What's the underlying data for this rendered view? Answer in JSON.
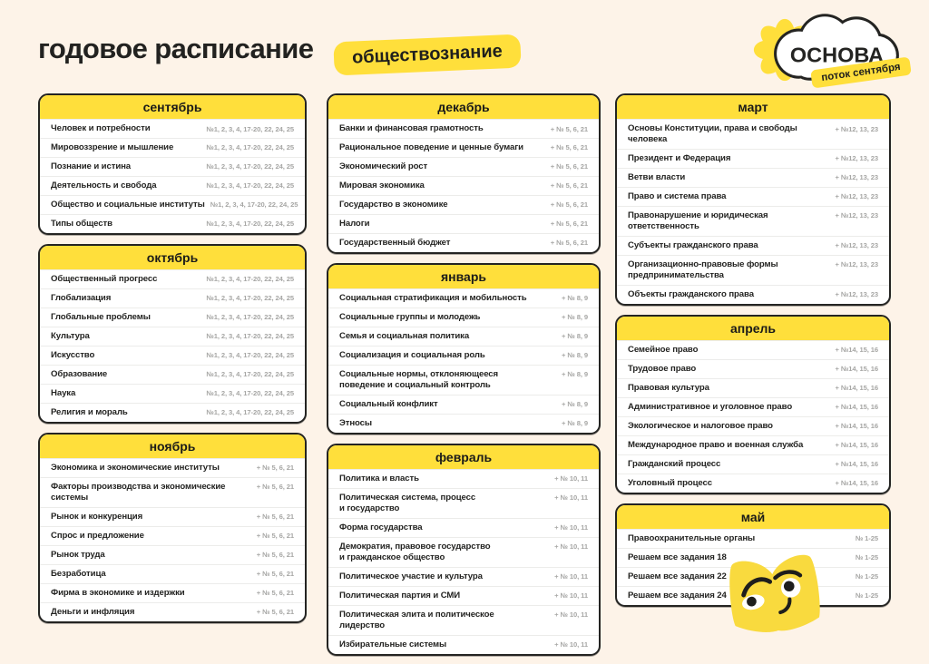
{
  "header": {
    "title": "годовое расписание",
    "subject_badge": "обществознание",
    "brand": "ОСНОВА",
    "stream_badge": "поток сентября"
  },
  "colors": {
    "background": "#FDF3E8",
    "accent_yellow": "#FFDF3B",
    "ink": "#1E1E1C",
    "muted_numbers": "#A6A6A4",
    "card_background": "#FFFFFF"
  },
  "icons": {
    "flower": "flower-icon",
    "mascot": "book-mascot-icon"
  },
  "columns": [
    [
      {
        "name": "сентябрь",
        "items": [
          {
            "topic": "Человек и потребности",
            "tasks": "№1, 2, 3, 4, 17-20, 22, 24, 25"
          },
          {
            "topic": "Мировоззрение и мышление",
            "tasks": "№1, 2, 3, 4, 17-20, 22, 24, 25"
          },
          {
            "topic": "Познание и истина",
            "tasks": "№1, 2, 3, 4, 17-20, 22, 24, 25"
          },
          {
            "topic": "Деятельность и свобода",
            "tasks": "№1, 2, 3, 4, 17-20, 22, 24, 25"
          },
          {
            "topic": "Общество и социальные институты",
            "tasks": "№1, 2, 3, 4, 17-20, 22, 24, 25"
          },
          {
            "topic": "Типы обществ",
            "tasks": "№1, 2, 3, 4, 17-20, 22, 24, 25"
          }
        ]
      },
      {
        "name": "октябрь",
        "items": [
          {
            "topic": "Общественный прогресс",
            "tasks": "№1, 2, 3, 4, 17-20, 22, 24, 25"
          },
          {
            "topic": "Глобализация",
            "tasks": "№1, 2, 3, 4, 17-20, 22, 24, 25"
          },
          {
            "topic": "Глобальные проблемы",
            "tasks": "№1, 2, 3, 4, 17-20, 22, 24, 25"
          },
          {
            "topic": "Культура",
            "tasks": "№1, 2, 3, 4, 17-20, 22, 24, 25"
          },
          {
            "topic": "Искусство",
            "tasks": "№1, 2, 3, 4, 17-20, 22, 24, 25"
          },
          {
            "topic": "Образование",
            "tasks": "№1, 2, 3, 4, 17-20, 22, 24, 25"
          },
          {
            "topic": "Наука",
            "tasks": "№1, 2, 3, 4, 17-20, 22, 24, 25"
          },
          {
            "topic": "Религия и мораль",
            "tasks": "№1, 2, 3, 4, 17-20, 22, 24, 25"
          }
        ]
      },
      {
        "name": "ноябрь",
        "items": [
          {
            "topic": "Экономика и экономические институты",
            "tasks": "+ № 5, 6, 21"
          },
          {
            "topic": "Факторы производства и экономические\nсистемы",
            "tasks": "+ № 5, 6, 21"
          },
          {
            "topic": "Рынок и конкуренция",
            "tasks": "+ № 5, 6, 21"
          },
          {
            "topic": "Спрос и предложение",
            "tasks": "+ № 5, 6, 21"
          },
          {
            "topic": "Рынок труда",
            "tasks": "+ № 5, 6, 21"
          },
          {
            "topic": "Безработица",
            "tasks": "+ № 5, 6, 21"
          },
          {
            "topic": "Фирма в экономике и издержки",
            "tasks": "+ № 5, 6, 21"
          },
          {
            "topic": "Деньги и инфляция",
            "tasks": "+ № 5, 6, 21"
          }
        ]
      }
    ],
    [
      {
        "name": "декабрь",
        "items": [
          {
            "topic": "Банки и финансовая грамотность",
            "tasks": "+ № 5, 6, 21"
          },
          {
            "topic": "Рациональное поведение и ценные бумаги",
            "tasks": "+ № 5, 6, 21"
          },
          {
            "topic": "Экономический рост",
            "tasks": "+ № 5, 6, 21"
          },
          {
            "topic": "Мировая экономика",
            "tasks": "+ № 5, 6, 21"
          },
          {
            "topic": "Государство в экономике",
            "tasks": "+ № 5, 6, 21"
          },
          {
            "topic": "Налоги",
            "tasks": "+ № 5, 6, 21"
          },
          {
            "topic": "Государственный бюджет",
            "tasks": "+ № 5, 6, 21"
          }
        ]
      },
      {
        "name": "январь",
        "items": [
          {
            "topic": "Социальная стратификация и мобильность",
            "tasks": "+ № 8, 9"
          },
          {
            "topic": "Социальные группы и молодежь",
            "tasks": "+ № 8, 9"
          },
          {
            "topic": "Семья и социальная политика",
            "tasks": "+ № 8, 9"
          },
          {
            "topic": "Социализация и социальная роль",
            "tasks": "+ № 8, 9"
          },
          {
            "topic": "Социальные нормы, отклоняющееся\nповедение и социальный контроль",
            "tasks": "+ № 8, 9"
          },
          {
            "topic": "Социальный конфликт",
            "tasks": "+ № 8, 9"
          },
          {
            "topic": "Этносы",
            "tasks": "+ № 8, 9"
          }
        ]
      },
      {
        "name": "февраль",
        "items": [
          {
            "topic": "Политика и власть",
            "tasks": "+ № 10, 11"
          },
          {
            "topic": "Политическая система, процесс\nи государство",
            "tasks": "+ № 10, 11"
          },
          {
            "topic": "Форма государства",
            "tasks": "+ № 10, 11"
          },
          {
            "topic": "Демократия, правовое государство\nи гражданское общество",
            "tasks": "+ № 10, 11"
          },
          {
            "topic": "Политическое участие и культура",
            "tasks": "+ № 10, 11"
          },
          {
            "topic": "Политическая партия и СМИ",
            "tasks": "+ № 10, 11"
          },
          {
            "topic": "Политическая элита и политическое\nлидерство",
            "tasks": "+ № 10, 11"
          },
          {
            "topic": "Избирательные системы",
            "tasks": "+ № 10, 11"
          }
        ]
      }
    ],
    [
      {
        "name": "март",
        "items": [
          {
            "topic": "Основы Конституции, права и свободы\nчеловека",
            "tasks": "+ №12, 13, 23"
          },
          {
            "topic": "Президент и Федерация",
            "tasks": "+ №12, 13, 23"
          },
          {
            "topic": "Ветви власти",
            "tasks": "+ №12, 13, 23"
          },
          {
            "topic": "Право и система права",
            "tasks": "+ №12, 13, 23"
          },
          {
            "topic": "Правонарушение и юридическая\nответственность",
            "tasks": "+ №12, 13, 23"
          },
          {
            "topic": "Субъекты гражданского права",
            "tasks": "+ №12, 13, 23"
          },
          {
            "topic": "Организационно-правовые формы\nпредпринимательства",
            "tasks": "+ №12, 13, 23"
          },
          {
            "topic": "Объекты гражданского права",
            "tasks": "+ №12, 13, 23"
          }
        ]
      },
      {
        "name": "апрель",
        "items": [
          {
            "topic": "Семейное право",
            "tasks": "+ №14, 15, 16"
          },
          {
            "topic": "Трудовое право",
            "tasks": "+ №14, 15, 16"
          },
          {
            "topic": "Правовая культура",
            "tasks": "+ №14, 15, 16"
          },
          {
            "topic": "Административное и уголовное право",
            "tasks": "+ №14, 15, 16"
          },
          {
            "topic": "Экологическое и налоговое право",
            "tasks": "+ №14, 15, 16"
          },
          {
            "topic": "Международное право и военная служба",
            "tasks": "+ №14, 15, 16"
          },
          {
            "topic": "Гражданский процесс",
            "tasks": "+ №14, 15, 16"
          },
          {
            "topic": "Уголовный процесс",
            "tasks": "+ №14, 15, 16"
          }
        ]
      },
      {
        "name": "май",
        "items": [
          {
            "topic": "Правоохранительные органы",
            "tasks": "№ 1-25"
          },
          {
            "topic": "Решаем все задания 18",
            "tasks": "№ 1-25"
          },
          {
            "topic": "Решаем все задания 22",
            "tasks": "№ 1-25"
          },
          {
            "topic": "Решаем все задания 24",
            "tasks": "№ 1-25"
          }
        ]
      }
    ]
  ]
}
